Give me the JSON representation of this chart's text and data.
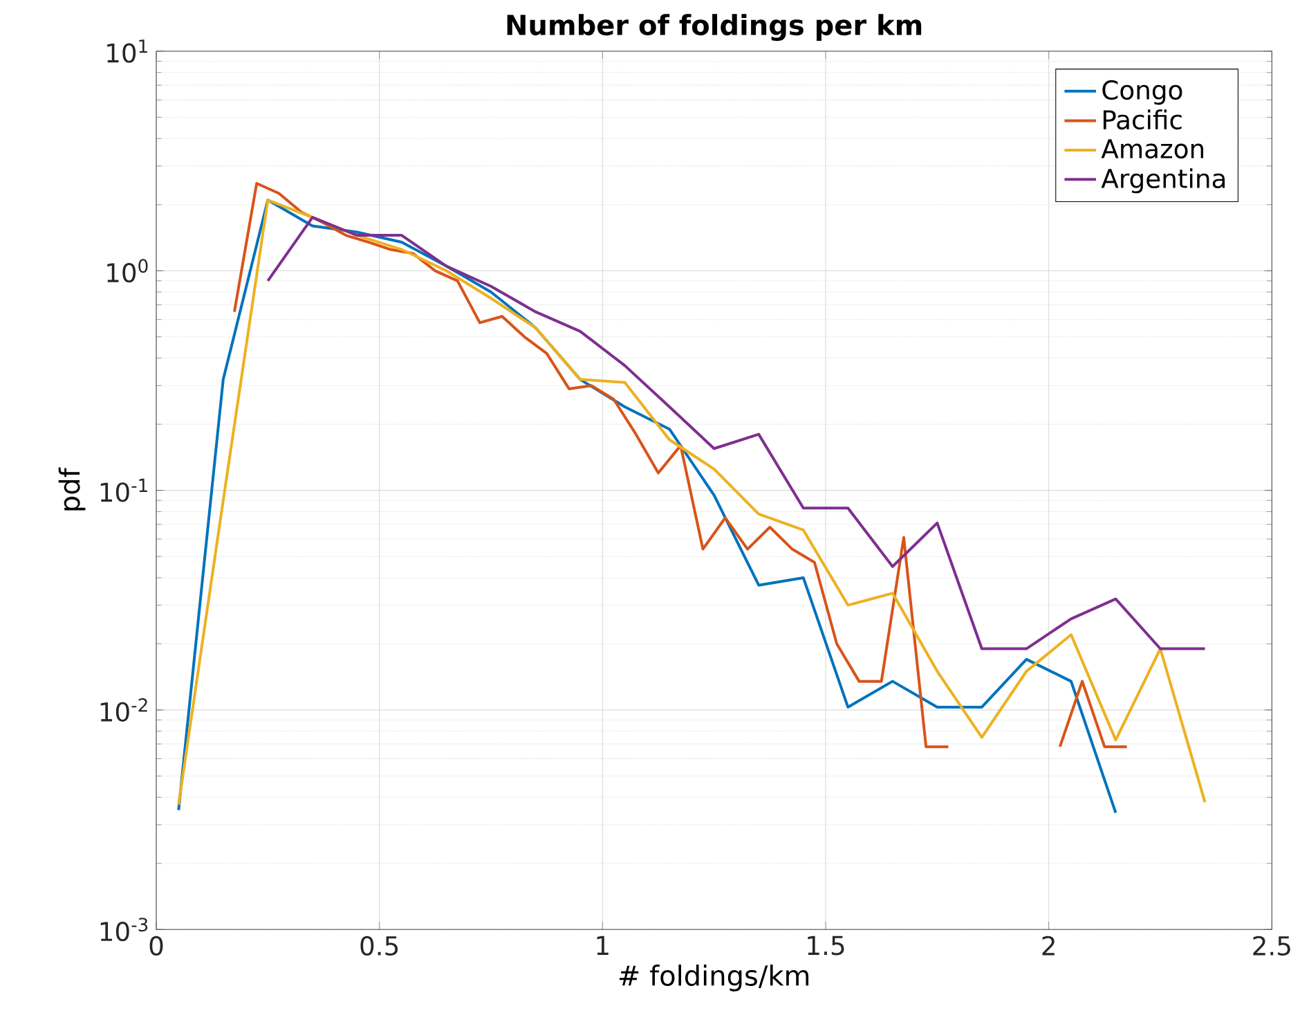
{
  "chart_data": {
    "type": "line",
    "title": "Number of foldings per km",
    "xlabel": "# foldings/km",
    "ylabel": "pdf",
    "xlim": [
      0,
      2.5
    ],
    "xticks": [
      0,
      0.5,
      1,
      1.5,
      2,
      2.5
    ],
    "ylim": [
      0.001,
      10
    ],
    "yticks": [
      {
        "value": 0.001,
        "label": "10$^{-3}$"
      },
      {
        "value": 0.01,
        "label": "10$^{-2}$"
      },
      {
        "value": 0.1,
        "label": "10$^{-1}$"
      },
      {
        "value": 1,
        "label": "10$^{0}$"
      },
      {
        "value": 10,
        "label": "10$^{1}$"
      }
    ],
    "log": true,
    "grid": true,
    "legend": "top right",
    "series": [
      {
        "name": "Congo",
        "color": "#0072bd",
        "x": [
          0.05,
          0.15,
          0.25,
          0.35,
          0.45,
          0.55,
          0.65,
          0.75,
          0.85,
          0.95,
          1.05,
          1.15,
          1.25,
          1.35,
          1.45,
          1.55,
          1.65,
          1.75,
          1.85,
          1.95,
          2.05,
          2.15
        ],
        "values": [
          0.0035,
          0.32,
          2.1,
          1.6,
          1.5,
          1.35,
          1.05,
          0.8,
          0.55,
          0.32,
          0.24,
          0.19,
          0.095,
          0.037,
          0.04,
          0.0103,
          0.0135,
          0.0103,
          0.0103,
          0.017,
          0.0135,
          0.0034
        ]
      },
      {
        "name": "Pacific",
        "color": "#d95319",
        "x": [
          0.175,
          0.225,
          0.275,
          0.325,
          0.375,
          0.425,
          0.475,
          0.525,
          0.575,
          0.625,
          0.675,
          0.725,
          0.775,
          0.825,
          0.875,
          0.925,
          0.975,
          1.025,
          1.075,
          1.125,
          1.175,
          1.225,
          1.275,
          1.325,
          1.375,
          1.425,
          1.475,
          1.525,
          1.575,
          1.625,
          1.675,
          1.725,
          1.775,
          1.825,
          1.875,
          1.925,
          1.975,
          2.025,
          2.075,
          2.125,
          2.175
        ],
        "values": [
          0.65,
          2.5,
          2.25,
          1.85,
          1.65,
          1.45,
          1.35,
          1.25,
          1.2,
          1.0,
          0.9,
          0.58,
          0.62,
          0.5,
          0.42,
          0.29,
          0.3,
          0.26,
          0.18,
          0.12,
          0.16,
          0.054,
          0.075,
          0.054,
          0.068,
          0.054,
          0.047,
          0.02,
          0.0135,
          0.0135,
          0.061,
          0.0068,
          0.0068,
          null,
          null,
          null,
          null,
          0.0068,
          0.0135,
          0.0068,
          0.0068
        ]
      },
      {
        "name": "Amazon",
        "color": "#edb120",
        "x": [
          0.05,
          0.15,
          0.25,
          0.35,
          0.45,
          0.55,
          0.65,
          0.75,
          0.85,
          0.95,
          1.05,
          1.15,
          1.25,
          1.35,
          1.45,
          1.55,
          1.65,
          1.75,
          1.85,
          1.95,
          2.05,
          2.15,
          2.25,
          2.35
        ],
        "values": [
          0.0037,
          0.09,
          2.1,
          1.75,
          1.45,
          1.25,
          1.0,
          0.75,
          0.55,
          0.32,
          0.31,
          0.17,
          0.125,
          0.078,
          0.066,
          0.03,
          0.034,
          0.015,
          0.0075,
          0.015,
          0.022,
          0.0073,
          0.019,
          0.0038
        ]
      },
      {
        "name": "Argentina",
        "color": "#7e2f8e",
        "x": [
          0.25,
          0.35,
          0.45,
          0.55,
          0.65,
          0.75,
          0.85,
          0.95,
          1.05,
          1.15,
          1.25,
          1.35,
          1.45,
          1.55,
          1.65,
          1.75,
          1.85,
          1.95,
          2.05,
          2.15,
          2.25,
          2.35
        ],
        "values": [
          0.9,
          1.75,
          1.45,
          1.45,
          1.05,
          0.85,
          0.65,
          0.53,
          0.37,
          0.24,
          0.155,
          0.18,
          0.083,
          0.083,
          0.045,
          0.071,
          0.019,
          0.019,
          0.026,
          0.032,
          0.019,
          0.019
        ]
      }
    ]
  }
}
